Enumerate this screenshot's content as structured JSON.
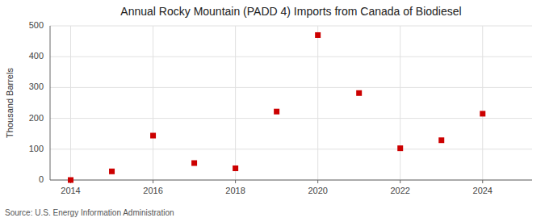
{
  "chart_data": {
    "type": "scatter",
    "title": "Annual Rocky Mountain (PADD 4) Imports from Canada of Biodiesel",
    "y_label": "Thousand Barrels",
    "annotations": [
      "Source: U.S. Energy Information Administration"
    ],
    "x": [
      2014,
      2015,
      2016,
      2017,
      2018,
      2019,
      2020,
      2021,
      2022,
      2023,
      2024
    ],
    "values": [
      0,
      28,
      144,
      55,
      38,
      222,
      470,
      282,
      103,
      129,
      215
    ],
    "color": "#cc0000",
    "marker": "square",
    "xlim": [
      2013.5,
      2025.2
    ],
    "ylim": [
      0,
      500
    ],
    "xticks": [
      2014,
      2016,
      2018,
      2020,
      2022,
      2024
    ],
    "yticks": [
      0,
      100,
      200,
      300,
      400,
      500
    ],
    "grid": true
  }
}
